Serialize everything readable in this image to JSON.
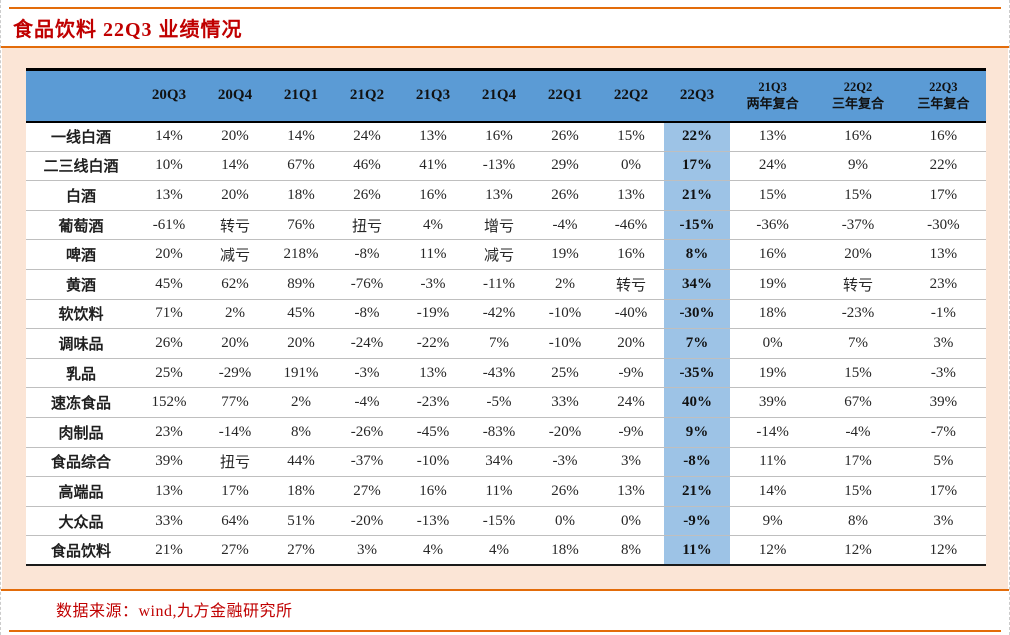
{
  "page": {
    "title": "食品饮料 22Q3 业绩情况",
    "source_note": "数据来源：wind,九方金融研究所"
  },
  "colors": {
    "accent_orange": "#E36C0A",
    "title_red": "#C00000",
    "header_blue": "#5B9BD5",
    "highlight_blue": "#9DC3E6",
    "panel_peach": "#FBE5D6",
    "row_separator": "#BFBFBF"
  },
  "table": {
    "quarter_columns": [
      "20Q3",
      "20Q4",
      "21Q1",
      "21Q2",
      "21Q3",
      "21Q4",
      "22Q1",
      "22Q2",
      "22Q3"
    ],
    "compound_columns": [
      {
        "line1": "21Q3",
        "line2": "两年复合"
      },
      {
        "line1": "22Q2",
        "line2": "三年复合"
      },
      {
        "line1": "22Q3",
        "line2": "三年复合"
      }
    ],
    "highlight_column_index": 8,
    "rows": [
      {
        "label": "一线白酒",
        "values": [
          "14%",
          "20%",
          "14%",
          "24%",
          "13%",
          "16%",
          "26%",
          "15%",
          "22%",
          "13%",
          "16%",
          "16%"
        ]
      },
      {
        "label": "二三线白酒",
        "values": [
          "10%",
          "14%",
          "67%",
          "46%",
          "41%",
          "-13%",
          "29%",
          "0%",
          "17%",
          "24%",
          "9%",
          "22%"
        ]
      },
      {
        "label": "白酒",
        "values": [
          "13%",
          "20%",
          "18%",
          "26%",
          "16%",
          "13%",
          "26%",
          "13%",
          "21%",
          "15%",
          "15%",
          "17%"
        ]
      },
      {
        "label": "葡萄酒",
        "values": [
          "-61%",
          "转亏",
          "76%",
          "扭亏",
          "4%",
          "增亏",
          "-4%",
          "-46%",
          "-15%",
          "-36%",
          "-37%",
          "-30%"
        ]
      },
      {
        "label": "啤酒",
        "values": [
          "20%",
          "减亏",
          "218%",
          "-8%",
          "11%",
          "减亏",
          "19%",
          "16%",
          "8%",
          "16%",
          "20%",
          "13%"
        ]
      },
      {
        "label": "黄酒",
        "values": [
          "45%",
          "62%",
          "89%",
          "-76%",
          "-3%",
          "-11%",
          "2%",
          "转亏",
          "34%",
          "19%",
          "转亏",
          "23%"
        ]
      },
      {
        "label": "软饮料",
        "values": [
          "71%",
          "2%",
          "45%",
          "-8%",
          "-19%",
          "-42%",
          "-10%",
          "-40%",
          "-30%",
          "18%",
          "-23%",
          "-1%"
        ]
      },
      {
        "label": "调味品",
        "values": [
          "26%",
          "20%",
          "20%",
          "-24%",
          "-22%",
          "7%",
          "-10%",
          "20%",
          "7%",
          "0%",
          "7%",
          "3%"
        ]
      },
      {
        "label": "乳品",
        "values": [
          "25%",
          "-29%",
          "191%",
          "-3%",
          "13%",
          "-43%",
          "25%",
          "-9%",
          "-35%",
          "19%",
          "15%",
          "-3%"
        ]
      },
      {
        "label": "速冻食品",
        "values": [
          "152%",
          "77%",
          "2%",
          "-4%",
          "-23%",
          "-5%",
          "33%",
          "24%",
          "40%",
          "39%",
          "67%",
          "39%"
        ]
      },
      {
        "label": "肉制品",
        "values": [
          "23%",
          "-14%",
          "8%",
          "-26%",
          "-45%",
          "-83%",
          "-20%",
          "-9%",
          "9%",
          "-14%",
          "-4%",
          "-7%"
        ]
      },
      {
        "label": "食品综合",
        "values": [
          "39%",
          "扭亏",
          "44%",
          "-37%",
          "-10%",
          "34%",
          "-3%",
          "3%",
          "-8%",
          "11%",
          "17%",
          "5%"
        ]
      },
      {
        "label": "高端品",
        "values": [
          "13%",
          "17%",
          "18%",
          "27%",
          "16%",
          "11%",
          "26%",
          "13%",
          "21%",
          "14%",
          "15%",
          "17%"
        ]
      },
      {
        "label": "大众品",
        "values": [
          "33%",
          "64%",
          "51%",
          "-20%",
          "-13%",
          "-15%",
          "0%",
          "0%",
          "-9%",
          "9%",
          "8%",
          "3%"
        ]
      },
      {
        "label": "食品饮料",
        "values": [
          "21%",
          "27%",
          "27%",
          "3%",
          "4%",
          "4%",
          "18%",
          "8%",
          "11%",
          "12%",
          "12%",
          "12%"
        ]
      }
    ]
  }
}
